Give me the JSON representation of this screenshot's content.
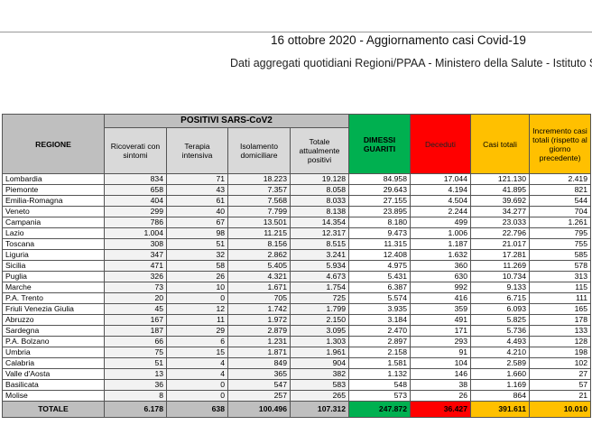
{
  "header": {
    "title": "16 ottobre 2020 - Aggiornamento casi Covid-19",
    "subtitle": "Dati aggregati quotidiani Regioni/PPAA - Ministero della Salute - Istituto Superiore di Sanità"
  },
  "table": {
    "region_header": "REGIONE",
    "group_header": "POSITIVI SARS-CoV2",
    "columns": {
      "ricoverati": "Ricoverati con sintomi",
      "terapia": "Terapia intensiva",
      "isolamento": "Isolamento domiciliare",
      "totale_positivi": "Totale attualmente positivi",
      "dimessi": "DIMESSI GUARITI",
      "deceduti": "Deceduti",
      "casi_totali": "Casi totali",
      "incremento": "Incremento casi totali (rispetto al giorno precedente)"
    },
    "rows": [
      {
        "region": "Lombardia",
        "ric": "834",
        "ter": "71",
        "iso": "18.223",
        "tot": "19.128",
        "dim": "84.958",
        "dec": "17.044",
        "casi": "121.130",
        "inc": "2.419"
      },
      {
        "region": "Piemonte",
        "ric": "658",
        "ter": "43",
        "iso": "7.357",
        "tot": "8.058",
        "dim": "29.643",
        "dec": "4.194",
        "casi": "41.895",
        "inc": "821"
      },
      {
        "region": "Emilia-Romagna",
        "ric": "404",
        "ter": "61",
        "iso": "7.568",
        "tot": "8.033",
        "dim": "27.155",
        "dec": "4.504",
        "casi": "39.692",
        "inc": "544"
      },
      {
        "region": "Veneto",
        "ric": "299",
        "ter": "40",
        "iso": "7.799",
        "tot": "8.138",
        "dim": "23.895",
        "dec": "2.244",
        "casi": "34.277",
        "inc": "704"
      },
      {
        "region": "Campania",
        "ric": "786",
        "ter": "67",
        "iso": "13.501",
        "tot": "14.354",
        "dim": "8.180",
        "dec": "499",
        "casi": "23.033",
        "inc": "1.261"
      },
      {
        "region": "Lazio",
        "ric": "1.004",
        "ter": "98",
        "iso": "11.215",
        "tot": "12.317",
        "dim": "9.473",
        "dec": "1.006",
        "casi": "22.796",
        "inc": "795"
      },
      {
        "region": "Toscana",
        "ric": "308",
        "ter": "51",
        "iso": "8.156",
        "tot": "8.515",
        "dim": "11.315",
        "dec": "1.187",
        "casi": "21.017",
        "inc": "755"
      },
      {
        "region": "Liguria",
        "ric": "347",
        "ter": "32",
        "iso": "2.862",
        "tot": "3.241",
        "dim": "12.408",
        "dec": "1.632",
        "casi": "17.281",
        "inc": "585"
      },
      {
        "region": "Sicilia",
        "ric": "471",
        "ter": "58",
        "iso": "5.405",
        "tot": "5.934",
        "dim": "4.975",
        "dec": "360",
        "casi": "11.269",
        "inc": "578"
      },
      {
        "region": "Puglia",
        "ric": "326",
        "ter": "26",
        "iso": "4.321",
        "tot": "4.673",
        "dim": "5.431",
        "dec": "630",
        "casi": "10.734",
        "inc": "313"
      },
      {
        "region": "Marche",
        "ric": "73",
        "ter": "10",
        "iso": "1.671",
        "tot": "1.754",
        "dim": "6.387",
        "dec": "992",
        "casi": "9.133",
        "inc": "115"
      },
      {
        "region": "P.A. Trento",
        "ric": "20",
        "ter": "0",
        "iso": "705",
        "tot": "725",
        "dim": "5.574",
        "dec": "416",
        "casi": "6.715",
        "inc": "111"
      },
      {
        "region": "Friuli Venezia Giulia",
        "ric": "45",
        "ter": "12",
        "iso": "1.742",
        "tot": "1.799",
        "dim": "3.935",
        "dec": "359",
        "casi": "6.093",
        "inc": "165"
      },
      {
        "region": "Abruzzo",
        "ric": "167",
        "ter": "11",
        "iso": "1.972",
        "tot": "2.150",
        "dim": "3.184",
        "dec": "491",
        "casi": "5.825",
        "inc": "178"
      },
      {
        "region": "Sardegna",
        "ric": "187",
        "ter": "29",
        "iso": "2.879",
        "tot": "3.095",
        "dim": "2.470",
        "dec": "171",
        "casi": "5.736",
        "inc": "133"
      },
      {
        "region": "P.A. Bolzano",
        "ric": "66",
        "ter": "6",
        "iso": "1.231",
        "tot": "1.303",
        "dim": "2.897",
        "dec": "293",
        "casi": "4.493",
        "inc": "128"
      },
      {
        "region": "Umbria",
        "ric": "75",
        "ter": "15",
        "iso": "1.871",
        "tot": "1.961",
        "dim": "2.158",
        "dec": "91",
        "casi": "4.210",
        "inc": "198"
      },
      {
        "region": "Calabria",
        "ric": "51",
        "ter": "4",
        "iso": "849",
        "tot": "904",
        "dim": "1.581",
        "dec": "104",
        "casi": "2.589",
        "inc": "102"
      },
      {
        "region": "Valle d'Aosta",
        "ric": "13",
        "ter": "4",
        "iso": "365",
        "tot": "382",
        "dim": "1.132",
        "dec": "146",
        "casi": "1.660",
        "inc": "27"
      },
      {
        "region": "Basilicata",
        "ric": "36",
        "ter": "0",
        "iso": "547",
        "tot": "583",
        "dim": "548",
        "dec": "38",
        "casi": "1.169",
        "inc": "57"
      },
      {
        "region": "Molise",
        "ric": "8",
        "ter": "0",
        "iso": "257",
        "tot": "265",
        "dim": "573",
        "dec": "26",
        "casi": "864",
        "inc": "21"
      }
    ],
    "total": {
      "label": "TOTALE",
      "ric": "6.178",
      "ter": "638",
      "iso": "100.496",
      "tot": "107.312",
      "dim": "247.872",
      "dec": "36.427",
      "casi": "391.611",
      "inc": "10.010"
    }
  }
}
